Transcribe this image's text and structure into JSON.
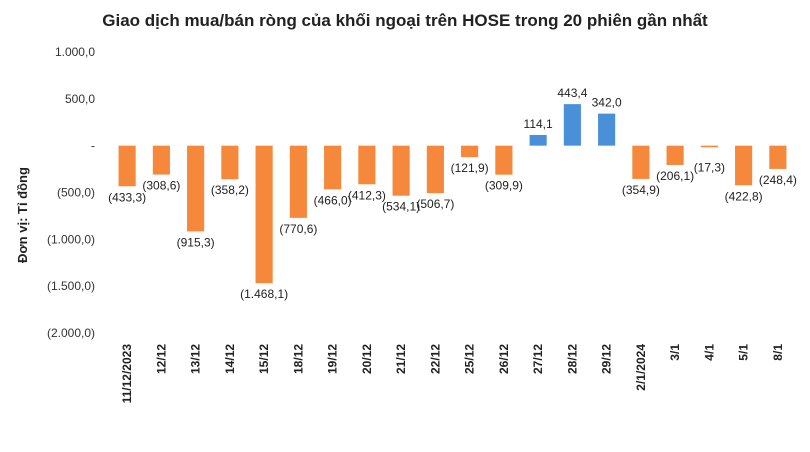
{
  "chart_data": {
    "type": "bar",
    "title": "Giao dịch mua/bán ròng của khối ngoại trên HOSE trong 20 phiên gần nhất",
    "xlabel": "",
    "ylabel": "Đơn vị: Tỉ đồng",
    "ylim": [
      -2000,
      1000
    ],
    "yticks": [
      1000,
      500,
      0,
      -500,
      -1000,
      -1500,
      -2000
    ],
    "ytick_labels": [
      "1.000,0",
      "500,0",
      "-",
      "(500,0)",
      "(1.000,0)",
      "(1.500,0)",
      "(2.000,0)"
    ],
    "grid": false,
    "categories": [
      "11/12/2023",
      "12/12",
      "13/12",
      "14/12",
      "15/12",
      "18/12",
      "19/12",
      "20/12",
      "21/12",
      "22/12",
      "25/12",
      "26/12",
      "27/12",
      "28/12",
      "29/12",
      "2/1/2024",
      "3/1",
      "4/1",
      "5/1",
      "8/1"
    ],
    "values": [
      -433.3,
      -308.6,
      -915.3,
      -358.2,
      -1468.1,
      -770.6,
      -466.0,
      -412.3,
      -534.1,
      -506.7,
      -121.9,
      -309.9,
      114.1,
      443.4,
      342.0,
      -354.9,
      -206.1,
      -17.3,
      -422.8,
      -248.4
    ],
    "value_labels": [
      "(433,3)",
      "(308,6)",
      "(915,3)",
      "(358,2)",
      "(1.468,1)",
      "(770,6)",
      "(466,0)",
      "(412,3)",
      "(534,1)",
      "(506,7)",
      "(121,9)",
      "(309,9)",
      "114,1",
      "443,4",
      "342,0",
      "(354,9)",
      "(206,1)",
      "(17,3)",
      "(422,8)",
      "(248,4)"
    ],
    "colors": {
      "positive": "#4a90d9",
      "negative": "#f5883a"
    }
  }
}
